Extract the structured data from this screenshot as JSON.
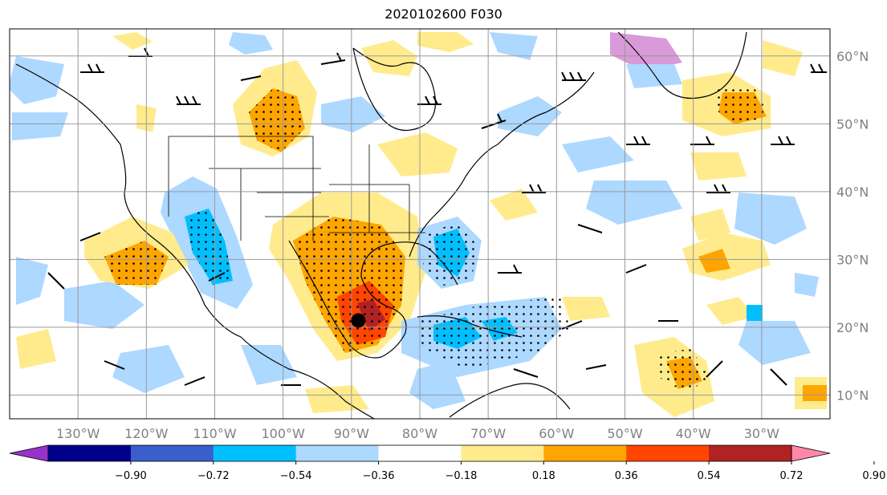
{
  "title": "2020102600 F030",
  "map": {
    "lon_range": [
      -140,
      -20
    ],
    "lat_range": [
      6.5,
      64
    ],
    "lon_ticks": [
      {
        "value": -130,
        "label": "130°W"
      },
      {
        "value": -120,
        "label": "120°W"
      },
      {
        "value": -110,
        "label": "110°W"
      },
      {
        "value": -100,
        "label": "100°W"
      },
      {
        "value": -90,
        "label": "90°W"
      },
      {
        "value": -80,
        "label": "80°W"
      },
      {
        "value": -70,
        "label": "70°W"
      },
      {
        "value": -60,
        "label": "60°W"
      },
      {
        "value": -50,
        "label": "50°W"
      },
      {
        "value": -40,
        "label": "40°W"
      },
      {
        "value": -30,
        "label": "30°W"
      }
    ],
    "lat_ticks": [
      {
        "value": 60,
        "label": "60°N"
      },
      {
        "value": 50,
        "label": "50°N"
      },
      {
        "value": 40,
        "label": "40°N"
      },
      {
        "value": 30,
        "label": "30°N"
      },
      {
        "value": 20,
        "label": "20°N"
      },
      {
        "value": 10,
        "label": "10°N"
      }
    ],
    "gridlines": true,
    "marker": {
      "lon": -89,
      "lat": 21,
      "color": "#000000"
    }
  },
  "colorbar": {
    "colors": [
      "#9932cc",
      "#00008b",
      "#3a5fcd",
      "#00bfff",
      "#add8ff",
      "#ffffff",
      "#ffeb8c",
      "#ffa500",
      "#ff4500",
      "#b22222",
      "#ff88aa"
    ],
    "labels": [
      "−0.90",
      "−0.72",
      "−0.54",
      "−0.36",
      "−0.18",
      "0.18",
      "0.36",
      "0.54",
      "0.72",
      "0.90"
    ]
  }
}
